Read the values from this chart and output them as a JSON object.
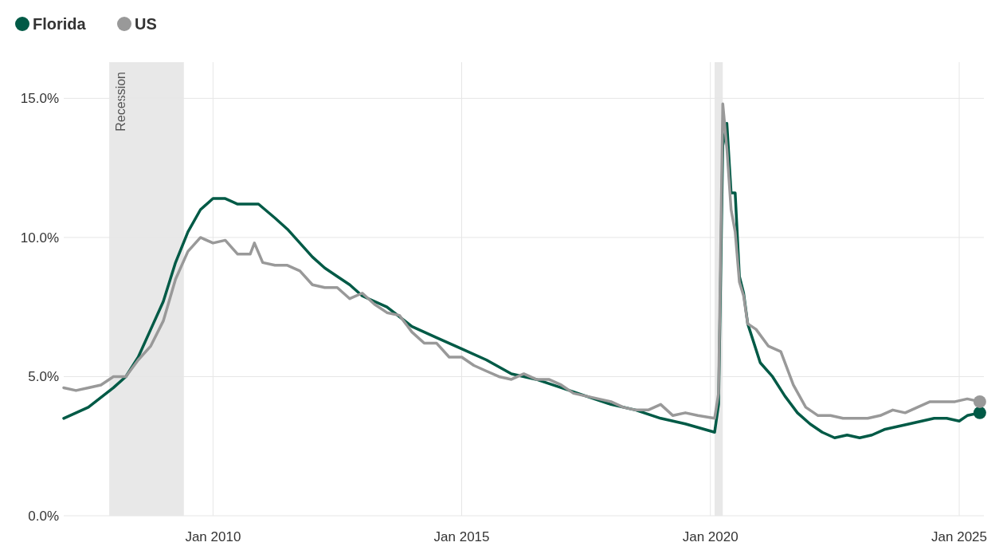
{
  "chart_data": {
    "type": "line",
    "legend": "top left",
    "grid": true,
    "line_style": "solid",
    "xlim": [
      "2007-01",
      "2025-07"
    ],
    "ylim": [
      0,
      16.3
    ],
    "xticks": [
      {
        "value": "2010-01",
        "label": "Jan 2010"
      },
      {
        "value": "2015-01",
        "label": "Jan 2015"
      },
      {
        "value": "2020-01",
        "label": "Jan 2020"
      },
      {
        "value": "2025-01",
        "label": "Jan 2025"
      }
    ],
    "yticks": [
      {
        "value": 0,
        "label": "0.0%"
      },
      {
        "value": 5,
        "label": "5.0%"
      },
      {
        "value": 10,
        "label": "10.0%"
      },
      {
        "value": 15,
        "label": "15.0%"
      }
    ],
    "bands": [
      {
        "axis": "x",
        "from": "2007-12",
        "to": "2009-06",
        "label": "Recession",
        "color": "#e8e8e8"
      },
      {
        "axis": "x",
        "from": "2020-02",
        "to": "2020-04",
        "color": "#e8e8e8"
      }
    ],
    "series": [
      {
        "name": "Florida",
        "color": "#005a46",
        "x": [
          "2007-01",
          "2007-07",
          "2008-01",
          "2008-04",
          "2008-07",
          "2008-10",
          "2009-01",
          "2009-04",
          "2009-07",
          "2009-10",
          "2010-01",
          "2010-04",
          "2010-07",
          "2010-12",
          "2011-04",
          "2011-07",
          "2011-10",
          "2012-01",
          "2012-04",
          "2012-07",
          "2012-10",
          "2013-01",
          "2013-07",
          "2014-01",
          "2014-07",
          "2015-01",
          "2015-07",
          "2016-01",
          "2016-07",
          "2017-01",
          "2017-07",
          "2018-01",
          "2018-07",
          "2019-01",
          "2019-07",
          "2020-02",
          "2020-03",
          "2020-04",
          "2020-05",
          "2020-06",
          "2020-07",
          "2020-08",
          "2020-09",
          "2020-10",
          "2021-01",
          "2021-04",
          "2021-07",
          "2021-10",
          "2022-01",
          "2022-04",
          "2022-07",
          "2022-10",
          "2023-01",
          "2023-04",
          "2023-07",
          "2023-10",
          "2024-01",
          "2024-04",
          "2024-07",
          "2024-10",
          "2025-01",
          "2025-03",
          "2025-06"
        ],
        "values": [
          3.5,
          3.9,
          4.6,
          5.0,
          5.7,
          6.7,
          7.7,
          9.1,
          10.2,
          11.0,
          11.4,
          11.4,
          11.2,
          11.2,
          10.7,
          10.3,
          9.8,
          9.3,
          8.9,
          8.6,
          8.3,
          7.9,
          7.5,
          6.8,
          6.4,
          6.0,
          5.6,
          5.1,
          4.9,
          4.6,
          4.3,
          4.0,
          3.8,
          3.5,
          3.3,
          3.0,
          4.0,
          13.3,
          14.1,
          11.6,
          11.6,
          8.6,
          8.0,
          6.9,
          5.5,
          5.0,
          4.3,
          3.7,
          3.3,
          3.0,
          2.8,
          2.9,
          2.8,
          2.9,
          3.1,
          3.2,
          3.3,
          3.4,
          3.5,
          3.5,
          3.4,
          3.6,
          3.7
        ]
      },
      {
        "name": "US",
        "color": "#999999",
        "x": [
          "2007-01",
          "2007-04",
          "2007-07",
          "2007-10",
          "2008-01",
          "2008-04",
          "2008-07",
          "2008-10",
          "2009-01",
          "2009-04",
          "2009-07",
          "2009-10",
          "2010-01",
          "2010-04",
          "2010-07",
          "2010-10",
          "2010-11",
          "2011-01",
          "2011-04",
          "2011-07",
          "2011-10",
          "2012-01",
          "2012-04",
          "2012-07",
          "2012-10",
          "2013-01",
          "2013-04",
          "2013-07",
          "2013-10",
          "2014-01",
          "2014-04",
          "2014-07",
          "2014-10",
          "2015-01",
          "2015-04",
          "2015-07",
          "2015-10",
          "2016-01",
          "2016-04",
          "2016-07",
          "2016-10",
          "2017-01",
          "2017-04",
          "2017-07",
          "2017-10",
          "2018-01",
          "2018-04",
          "2018-07",
          "2018-10",
          "2019-01",
          "2019-04",
          "2019-07",
          "2019-10",
          "2020-02",
          "2020-03",
          "2020-04",
          "2020-05",
          "2020-06",
          "2020-07",
          "2020-08",
          "2020-09",
          "2020-10",
          "2020-12",
          "2021-03",
          "2021-06",
          "2021-09",
          "2021-12",
          "2022-03",
          "2022-06",
          "2022-09",
          "2022-12",
          "2023-03",
          "2023-06",
          "2023-09",
          "2023-12",
          "2024-03",
          "2024-06",
          "2024-09",
          "2024-12",
          "2025-03",
          "2025-06"
        ],
        "values": [
          4.6,
          4.5,
          4.6,
          4.7,
          5.0,
          5.0,
          5.6,
          6.1,
          7.0,
          8.5,
          9.5,
          10.0,
          9.8,
          9.9,
          9.4,
          9.4,
          9.8,
          9.1,
          9.0,
          9.0,
          8.8,
          8.3,
          8.2,
          8.2,
          7.8,
          8.0,
          7.6,
          7.3,
          7.2,
          6.6,
          6.2,
          6.2,
          5.7,
          5.7,
          5.4,
          5.2,
          5.0,
          4.9,
          5.1,
          4.9,
          4.9,
          4.7,
          4.4,
          4.3,
          4.2,
          4.1,
          3.9,
          3.8,
          3.8,
          4.0,
          3.6,
          3.7,
          3.6,
          3.5,
          4.4,
          14.8,
          13.2,
          11.0,
          10.2,
          8.4,
          7.9,
          6.9,
          6.7,
          6.1,
          5.9,
          4.7,
          3.9,
          3.6,
          3.6,
          3.5,
          3.5,
          3.5,
          3.6,
          3.8,
          3.7,
          3.9,
          4.1,
          4.1,
          4.1,
          4.2,
          4.1
        ]
      }
    ]
  }
}
